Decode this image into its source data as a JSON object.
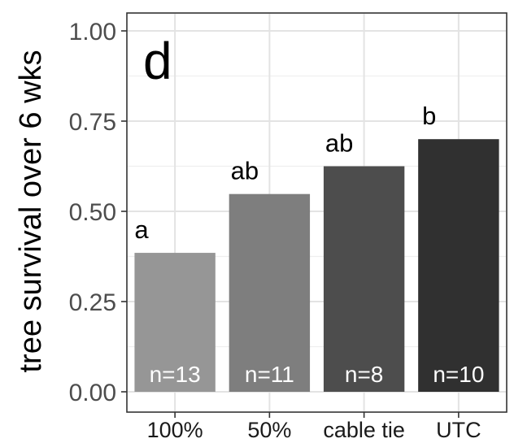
{
  "chart_data": {
    "type": "bar",
    "panel_tag": "d",
    "ylabel": "tree survival over 6 wks",
    "xlabel": "",
    "ylim": [
      0,
      1.05
    ],
    "yticks": [
      "0.00",
      "0.25",
      "0.50",
      "0.75",
      "1.00"
    ],
    "categories": [
      "100%",
      "50%",
      "cable tie",
      "UTC"
    ],
    "values": [
      0.385,
      0.548,
      0.625,
      0.7
    ],
    "significance_labels": [
      "a",
      "ab",
      "ab",
      "b"
    ],
    "n_labels": [
      "n=13",
      "n=11",
      "n=8",
      "n=10"
    ],
    "bar_colors": [
      "#969696",
      "#7e7e7e",
      "#4d4d4d",
      "#303030"
    ],
    "grid": true,
    "legend": "none"
  }
}
